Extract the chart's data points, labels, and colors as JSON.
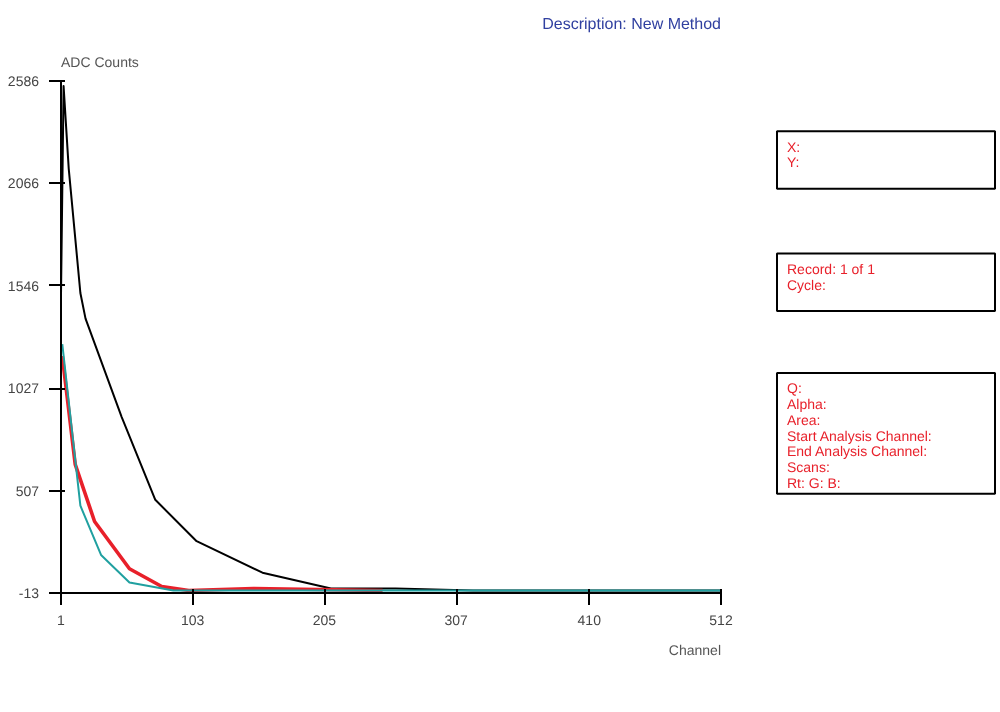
{
  "chart_data": {
    "type": "line",
    "title": "Description: New Method",
    "xlabel": "Channel",
    "ylabel": "ADC Counts",
    "xlim": [
      1,
      512
    ],
    "ylim": [
      -13,
      2586
    ],
    "xticks": [
      1,
      103,
      205,
      307,
      410,
      512
    ],
    "yticks": [
      -13,
      507,
      1027,
      1546,
      2066,
      2586
    ],
    "grid": false,
    "series": [
      {
        "color": "#000000",
        "x": [
          1,
          3,
          7,
          16,
          20,
          48,
          74,
          106,
          157,
          210,
          260,
          320,
          400,
          512
        ],
        "values": [
          1500,
          2560,
          2140,
          1510,
          1380,
          880,
          460,
          250,
          90,
          10,
          10,
          0,
          0,
          0
        ]
      },
      {
        "color": "#e8202a",
        "x": [
          2,
          12,
          27,
          54,
          79,
          100,
          150,
          250
        ],
        "values": [
          1190,
          640,
          350,
          110,
          20,
          0,
          10,
          0
        ]
      },
      {
        "color": "#20a0a0",
        "x": [
          2,
          16,
          32,
          54,
          88,
          150,
          250,
          400,
          512
        ],
        "values": [
          1250,
          430,
          180,
          40,
          0,
          0,
          0,
          0,
          0
        ]
      }
    ],
    "annotations": [
      "X:",
      "Y:",
      "Record: 1 of 1",
      "Cycle:",
      "Q:",
      "Alpha:",
      "Area:",
      "Start Analysis Channel:",
      "End Analysis Channel:",
      "Scans:",
      "Rt:  G:  B:"
    ]
  }
}
